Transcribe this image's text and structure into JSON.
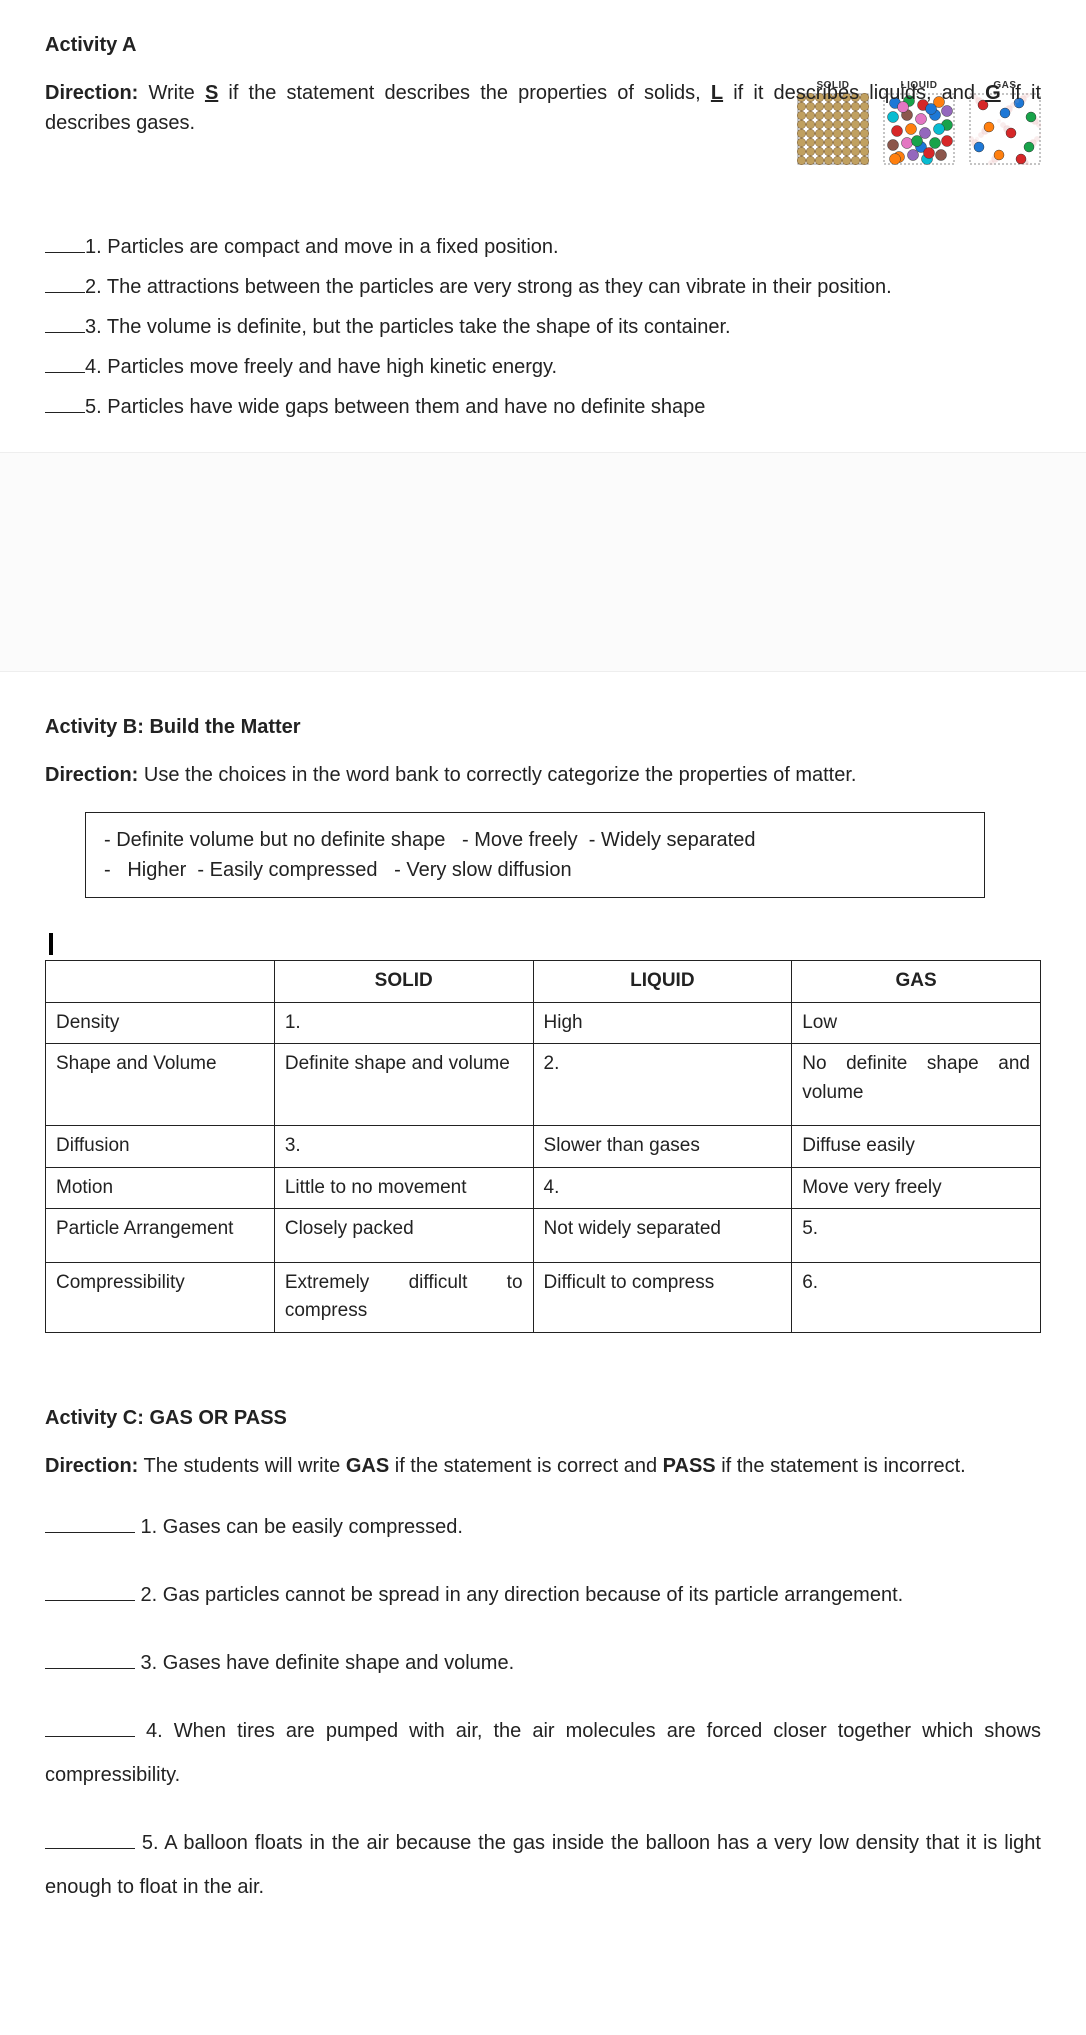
{
  "activityA": {
    "title": "Activity A",
    "direction_lead": "Direction:",
    "direction_body": " Write ",
    "solid_letter": "S",
    "direction_mid1": " if the statement describes the properties of solids, ",
    "liquid_letter": "L",
    "direction_mid2": " if it describes liquids, and ",
    "gas_letter": "G",
    "direction_end": " if it describes gases.",
    "labels": {
      "solid": "SOLID",
      "liquid": "LIQUID",
      "gas": "GAS"
    },
    "diagrams": {
      "size": 72,
      "solid": {
        "grid_stroke": "#888888",
        "fill": "#c0a060",
        "stroke": "#6a4a20",
        "cols": 8,
        "rows": 8
      },
      "liquid": {
        "colors": [
          "#1e78d6",
          "#18a34a",
          "#d62728",
          "#ff7f0e",
          "#9467bd",
          "#08bcd1",
          "#8c564b",
          "#e377c2"
        ],
        "count": 28
      },
      "gas": {
        "colors": [
          "#d62728",
          "#1e78d6",
          "#18a34a",
          "#ff7f0e"
        ],
        "count": 10,
        "trail": "#e8b4b4"
      }
    },
    "questions": [
      "1. Particles are compact and move in a fixed position.",
      "2. The attractions between the particles are very strong as they can vibrate in their position.",
      "3. The volume is definite, but the particles take the shape of its container.",
      "4. Particles move freely and have high kinetic energy.",
      "5. Particles have wide gaps between them and have no definite shape"
    ]
  },
  "activityB": {
    "title": "Activity B: Build the Matter",
    "direction_lead": "Direction:",
    "direction_body": " Use the choices in the word bank to correctly categorize the properties of matter.",
    "wordbank": [
      "Definite volume but no definite shape",
      "Move freely",
      "Widely separated",
      "Higher",
      "Easily compressed",
      "Very slow diffusion"
    ],
    "headers": [
      "",
      "SOLID",
      "LIQUID",
      "GAS"
    ],
    "rows": [
      {
        "label": "Density",
        "solid": "1.",
        "liquid": "High",
        "gas": "Low"
      },
      {
        "label": "Shape and Volume",
        "solid": "Definite shape and volume",
        "liquid": "2.",
        "gas": "No definite shape and volume"
      },
      {
        "label": "Diffusion",
        "solid": "3.",
        "liquid": "Slower than gases",
        "gas": "Diffuse easily"
      },
      {
        "label": "Motion",
        "solid": "Little to no movement",
        "liquid": "4.",
        "gas": "Move very freely"
      },
      {
        "label": "Particle Arrangement",
        "solid": "Closely packed",
        "liquid": "Not widely separated",
        "gas": "5."
      },
      {
        "label": "Compressibility",
        "solid": "Extremely difficult to compress",
        "liquid": "Difficult to compress",
        "gas": "6."
      }
    ]
  },
  "activityC": {
    "title": "Activity C: GAS OR PASS",
    "direction_lead": "Direction:",
    "direction_body": " The students will write ",
    "gas_word": "GAS",
    "direction_mid": " if the statement is correct and ",
    "pass_word": "PASS",
    "direction_end": " if the statement is incorrect.",
    "questions": [
      "1. Gases can be easily compressed.",
      "2. Gas particles cannot be spread in any direction because of its particle arrangement.",
      "3. Gases have definite shape and volume.",
      "4. When tires are pumped with air, the air molecules are forced closer together which shows compressibility.",
      "5. A balloon floats in the air because the gas inside the balloon has a very low density that it is light enough to float in the air."
    ]
  }
}
